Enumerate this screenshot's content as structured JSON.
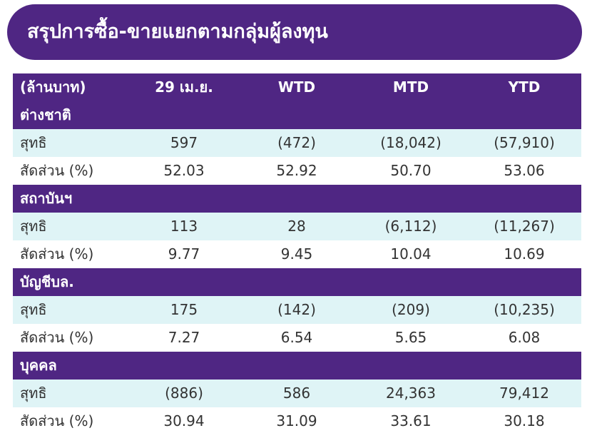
{
  "title": "สรุปการซื้อ-ขายแยกตามกลุ่มผู้ลงทุน",
  "table": {
    "header": [
      "(ล้านบาท)",
      "29 เม.ย.",
      "WTD",
      "MTD",
      "YTD"
    ],
    "groups": [
      {
        "name": "ต่างชาติ",
        "rows": [
          [
            "สุทธิ",
            "597",
            "(472)",
            "(18,042)",
            "(57,910)"
          ],
          [
            "สัดส่วน (%)",
            "52.03",
            "52.92",
            "50.70",
            "53.06"
          ]
        ]
      },
      {
        "name": "สถาบันฯ",
        "rows": [
          [
            "สุทธิ",
            "113",
            "28",
            "(6,112)",
            "(11,267)"
          ],
          [
            "สัดส่วน (%)",
            "9.77",
            "9.45",
            "10.04",
            "10.69"
          ]
        ]
      },
      {
        "name": "บัญชีบล.",
        "rows": [
          [
            "สุทธิ",
            "175",
            "(142)",
            "(209)",
            "(10,235)"
          ],
          [
            "สัดส่วน (%)",
            "7.27",
            "6.54",
            "5.65",
            "6.08"
          ]
        ]
      },
      {
        "name": "บุคคล",
        "rows": [
          [
            "สุทธิ",
            "(886)",
            "586",
            "24,363",
            "79,412"
          ],
          [
            "สัดส่วน (%)",
            "30.94",
            "31.09",
            "33.61",
            "30.18"
          ]
        ]
      }
    ]
  }
}
